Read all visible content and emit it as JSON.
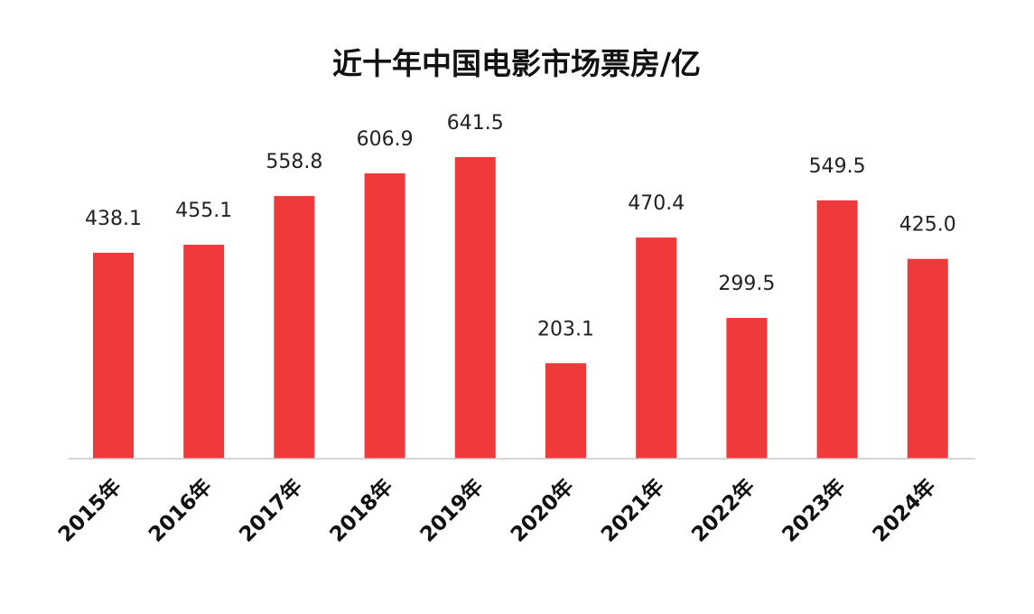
{
  "chart_data": {
    "type": "bar",
    "title": "近十年中国电影市场票房/亿",
    "xlabel": "",
    "ylabel": "",
    "categories": [
      "2015年",
      "2016年",
      "2017年",
      "2018年",
      "2019年",
      "2020年",
      "2021年",
      "2022年",
      "2023年",
      "2024年"
    ],
    "values": [
      438.1,
      455.1,
      558.8,
      606.9,
      641.5,
      203.1,
      470.4,
      299.5,
      549.5,
      425.0
    ],
    "data_labels": [
      "438.1",
      "455.1",
      "558.8",
      "606.9",
      "641.5",
      "203.1",
      "470.4",
      "299.5",
      "549.5",
      "425.0"
    ],
    "ylim": [
      0,
      700
    ],
    "grid": false,
    "legend": "none",
    "colors": {
      "bar": "#f0393a",
      "axis": "#c8c8c8",
      "text": "#111111"
    }
  }
}
